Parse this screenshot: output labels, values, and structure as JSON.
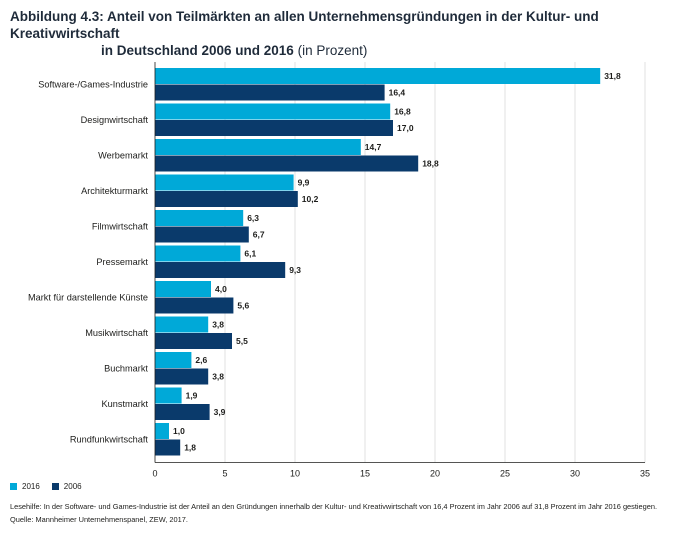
{
  "title": {
    "prefix": "Abbildung 4.3: Anteil von Teilmärkten an allen Unternehmensgründungen in der Kultur- und Kreativwirtschaft",
    "line2": "in Deutschland 2006 und 2016",
    "unit": "(in Prozent)"
  },
  "chart_data": {
    "type": "bar",
    "orientation": "horizontal",
    "categories": [
      "Software-/Games-Industrie",
      "Designwirtschaft",
      "Werbemarkt",
      "Architekturmarkt",
      "Filmwirtschaft",
      "Pressemarkt",
      "Markt für darstellende Künste",
      "Musikwirtschaft",
      "Buchmarkt",
      "Kunstmarkt",
      "Rundfunkwirtschaft"
    ],
    "series": [
      {
        "name": "2016",
        "color": "#00a9d8",
        "values": [
          31.8,
          16.8,
          14.7,
          9.9,
          6.3,
          6.1,
          4.0,
          3.8,
          2.6,
          1.9,
          1.0
        ],
        "labels": [
          "31,8",
          "16,8",
          "14,7",
          "9,9",
          "6,3",
          "6,1",
          "4,0",
          "3,8",
          "2,6",
          "1,9",
          "1,0"
        ]
      },
      {
        "name": "2006",
        "color": "#0a3a6b",
        "values": [
          16.4,
          17.0,
          18.8,
          10.2,
          6.7,
          9.3,
          5.6,
          5.5,
          3.8,
          3.9,
          1.8
        ],
        "labels": [
          "16,4",
          "17,0",
          "18,8",
          "10,2",
          "6,7",
          "9,3",
          "5,6",
          "5,5",
          "3,8",
          "3,9",
          "1,8"
        ]
      }
    ],
    "xlim": [
      0,
      35
    ],
    "xticks": [
      0,
      5,
      10,
      15,
      20,
      25,
      30,
      35
    ],
    "xtick_labels": [
      "0",
      "5",
      "10",
      "15",
      "20",
      "25",
      "30",
      "35"
    ],
    "grid": true,
    "legend_position": "bottom-left"
  },
  "legend": [
    {
      "label": "2016",
      "color": "#00a9d8"
    },
    {
      "label": "2006",
      "color": "#0a3a6b"
    }
  ],
  "note": {
    "reading_aid": "Lesehilfe: In der Software- und Games-Industrie ist der Anteil an den Gründungen innerhalb der Kultur- und Kreativwirtschaft von 16,4 Prozent im Jahr 2006 auf 31,8 Prozent im Jahr 2016 gestiegen.",
    "source": "Quelle: Mannheimer Unternehmenspanel, ZEW, 2017."
  }
}
